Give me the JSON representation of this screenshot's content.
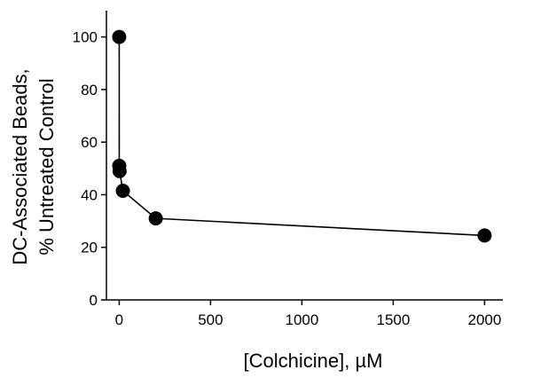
{
  "chart_data": {
    "type": "line",
    "title": "",
    "xlabel": "[Colchicine], µM",
    "ylabel_lines": [
      "DC-Associated Beads,",
      "% Untreated Control"
    ],
    "xlim": [
      -70,
      2100
    ],
    "ylim": [
      0,
      110
    ],
    "x_ticks": [
      0,
      500,
      1000,
      1500,
      2000
    ],
    "y_ticks": [
      0,
      20,
      40,
      60,
      80,
      100
    ],
    "grid": false,
    "legend": "none",
    "series": [
      {
        "marker": "circle",
        "color": "#000000",
        "x": [
          0,
          0.2,
          2,
          20,
          200,
          2000
        ],
        "y": [
          100,
          51,
          49,
          41.5,
          31,
          24.5
        ]
      }
    ]
  }
}
